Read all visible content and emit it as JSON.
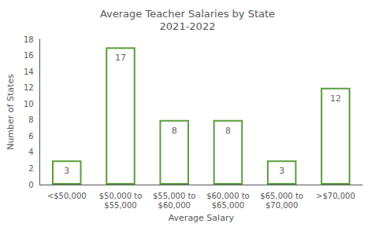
{
  "chart_data": {
    "type": "bar",
    "title": "Average Teacher Salaries by State\n2021-2022",
    "xlabel": "Average Salary",
    "ylabel": "Number of States",
    "categories": [
      "<$50,000",
      "$50,000 to\n$55,000",
      "$55,000 to\n$60,000",
      "$60,000 to\n$65,000",
      "$65,000 to\n$70,000",
      ">$70,000"
    ],
    "values": [
      3,
      17,
      8,
      8,
      3,
      12
    ],
    "color": "#5b9e3c",
    "ylim": [
      0,
      18
    ],
    "yticks": [
      0,
      2,
      4,
      6,
      8,
      10,
      12,
      14,
      16,
      18
    ],
    "grid": false,
    "data_labels": true
  }
}
